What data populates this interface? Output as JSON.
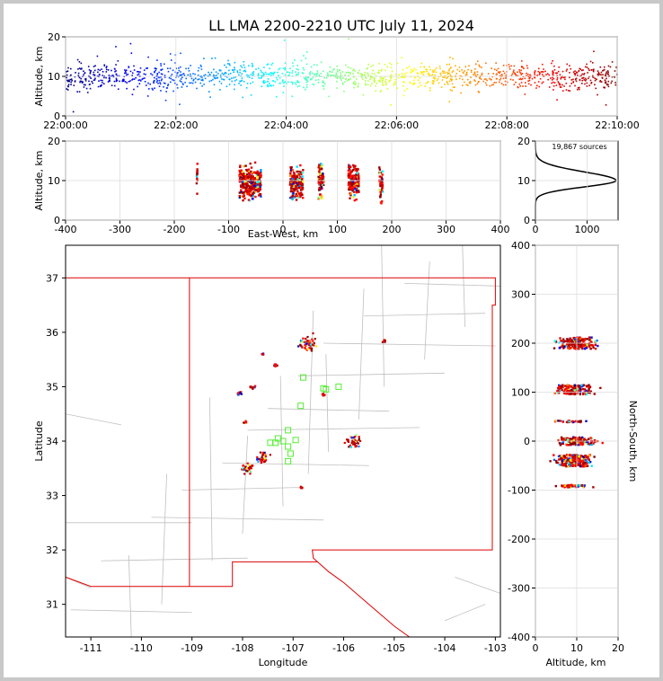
{
  "chart_data": [
    {
      "type": "scatter",
      "name": "altitude-vs-time",
      "title": "LL LMA 2200-2210 UTC July 11, 2024",
      "ylabel": "Altitude, km",
      "ylim": [
        0,
        20
      ],
      "y_ticks": [
        "0",
        "10",
        "20"
      ],
      "x_ticks": [
        "22:00:00",
        "22:02:00",
        "22:04:00",
        "22:06:00",
        "22:08:00",
        "22:10:00"
      ],
      "xlim_minutes": [
        0,
        10
      ],
      "color_by_time": [
        "#000080",
        "#0000ff",
        "#00b0ff",
        "#40ffc0",
        "#c0ff40",
        "#ffc000",
        "#ff4000",
        "#c00000",
        "#800000"
      ]
    },
    {
      "type": "scatter",
      "name": "altitude-vs-east-west",
      "xlabel": "East-West, km",
      "ylabel": "Altitude, km",
      "xlim": [
        -400,
        400
      ],
      "ylim": [
        0,
        20
      ],
      "x_ticks": [
        "-400",
        "-300",
        "-200",
        "-100",
        "0",
        "100",
        "200",
        "300",
        "400"
      ],
      "y_ticks": [
        "0",
        "10",
        "20"
      ],
      "clusters_km": [
        {
          "x": -60,
          "alt": 9.5,
          "spread": 25
        },
        {
          "x": 25,
          "alt": 9.5,
          "spread": 15
        },
        {
          "x": 70,
          "alt": 10,
          "spread": 6
        },
        {
          "x": 130,
          "alt": 10,
          "spread": 12
        },
        {
          "x": 180,
          "alt": 9,
          "spread": 4
        },
        {
          "x": -158,
          "alt": 12,
          "spread": 1
        }
      ]
    },
    {
      "type": "line",
      "name": "altitude-histogram",
      "annotation": "19,867 sources",
      "xlim": [
        0,
        1600
      ],
      "ylim": [
        0,
        20
      ],
      "x_ticks": [
        "0",
        "1000"
      ],
      "y_ticks": [
        "0",
        "10",
        "20"
      ],
      "peak_altitude_km": 10,
      "peak_count": 1560
    },
    {
      "type": "scatter",
      "name": "plan-view-map",
      "xlabel": "Longitude",
      "ylabel": "Latitude",
      "xlim": [
        -111.5,
        -102.9
      ],
      "ylim": [
        30.4,
        37.6
      ],
      "x_ticks": [
        "-111",
        "-110",
        "-109",
        "-108",
        "-107",
        "-106",
        "-105",
        "-104",
        "-103"
      ],
      "y_ticks": [
        "31",
        "32",
        "33",
        "34",
        "35",
        "36",
        "37"
      ],
      "clusters_deg": [
        {
          "lon": -106.7,
          "lat": 35.8,
          "spread": 0.18
        },
        {
          "lon": -105.8,
          "lat": 34.0,
          "spread": 0.15
        },
        {
          "lon": -107.6,
          "lat": 33.7,
          "spread": 0.12
        },
        {
          "lon": -107.9,
          "lat": 33.5,
          "spread": 0.1
        },
        {
          "lon": -107.8,
          "lat": 35.0,
          "spread": 0.05
        },
        {
          "lon": -108.05,
          "lat": 34.87,
          "spread": 0.05
        },
        {
          "lon": -107.35,
          "lat": 35.4,
          "spread": 0.04
        },
        {
          "lon": -106.4,
          "lat": 34.85,
          "spread": 0.04
        },
        {
          "lon": -107.95,
          "lat": 34.35,
          "spread": 0.03
        },
        {
          "lon": -106.85,
          "lat": 33.15,
          "spread": 0.03
        },
        {
          "lon": -105.2,
          "lat": 35.85,
          "spread": 0.03
        },
        {
          "lon": -107.6,
          "lat": 35.6,
          "spread": 0.02
        }
      ],
      "stations": [
        {
          "lon": -106.8,
          "lat": 35.17
        },
        {
          "lon": -106.4,
          "lat": 34.97
        },
        {
          "lon": -106.1,
          "lat": 35.0
        },
        {
          "lon": -106.85,
          "lat": 34.65
        },
        {
          "lon": -107.1,
          "lat": 34.2
        },
        {
          "lon": -107.3,
          "lat": 34.05
        },
        {
          "lon": -107.45,
          "lat": 33.97
        },
        {
          "lon": -107.2,
          "lat": 34.0
        },
        {
          "lon": -106.95,
          "lat": 34.02
        },
        {
          "lon": -107.1,
          "lat": 33.9
        },
        {
          "lon": -107.05,
          "lat": 33.77
        },
        {
          "lon": -107.1,
          "lat": 33.63
        },
        {
          "lon": -107.35,
          "lat": 33.97
        },
        {
          "lon": -106.35,
          "lat": 34.95
        }
      ]
    },
    {
      "type": "scatter",
      "name": "north-south-vs-altitude",
      "xlabel": "Altitude, km",
      "ylabel": "North-South, km",
      "xlim": [
        0,
        20
      ],
      "ylim": [
        -400,
        400
      ],
      "x_ticks": [
        "0",
        "10",
        "20"
      ],
      "y_ticks": [
        "-400",
        "-300",
        "-200",
        "-100",
        "0",
        "100",
        "200",
        "300",
        "400"
      ],
      "clusters_km": [
        {
          "ns": 200,
          "alt": 10,
          "spread": 15
        },
        {
          "ns": 105,
          "alt": 9.5,
          "spread": 12
        },
        {
          "ns": 0,
          "alt": 10,
          "spread": 10
        },
        {
          "ns": -40,
          "alt": 9.5,
          "spread": 15
        },
        {
          "ns": -92,
          "alt": 10,
          "spread": 3
        },
        {
          "ns": 40,
          "alt": 9,
          "spread": 2
        }
      ]
    }
  ]
}
